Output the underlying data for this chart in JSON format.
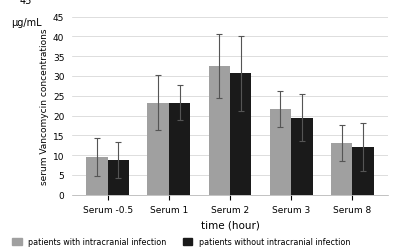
{
  "categories": [
    "Serum -0.5",
    "Serum 1",
    "Serum 2",
    "Serum 3",
    "Serum 8"
  ],
  "values_with": [
    9.6,
    23.3,
    32.5,
    21.7,
    13.0
  ],
  "values_without": [
    8.8,
    23.3,
    30.7,
    19.5,
    12.0
  ],
  "err_with": [
    4.8,
    7.0,
    8.0,
    4.5,
    4.5
  ],
  "err_without": [
    4.5,
    4.5,
    9.5,
    6.0,
    6.0
  ],
  "color_with": "#a0a0a0",
  "color_without": "#1a1a1a",
  "xlabel": "time (hour)",
  "ylabel": "serum Vancomycin concentrations",
  "ylim": [
    0,
    45
  ],
  "yticks": [
    0,
    5,
    10,
    15,
    20,
    25,
    30,
    35,
    40,
    45
  ],
  "legend_with": "patients with intracranial infection",
  "legend_without": "patients without intracranial infection",
  "bar_width": 0.35,
  "background_color": "#ffffff",
  "grid_color": "#d0d0d0"
}
